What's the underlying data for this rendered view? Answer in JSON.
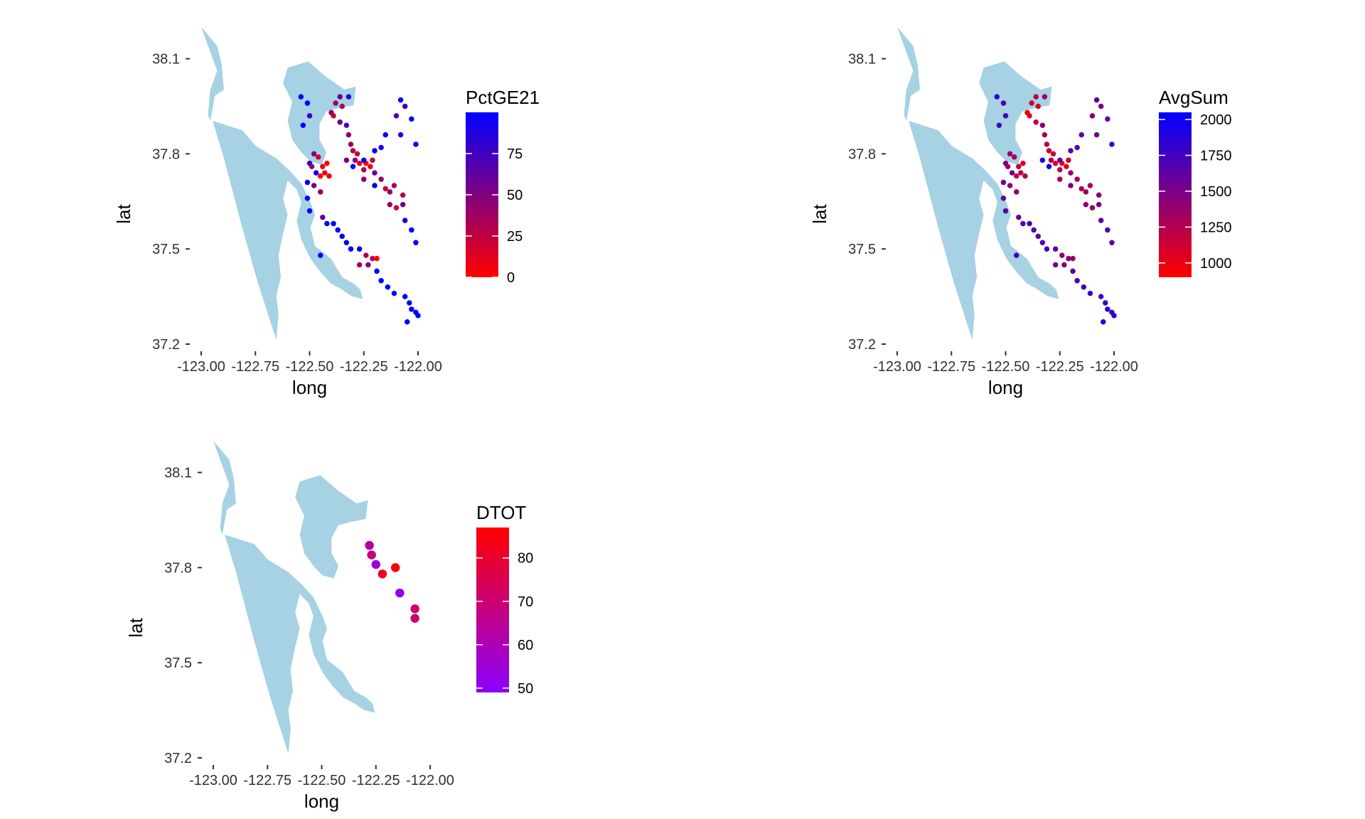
{
  "chart_data": [
    {
      "type": "scatter",
      "id": "pctge21",
      "xlabel": "long",
      "ylabel": "lat",
      "xlim": [
        -123.0,
        -122.0
      ],
      "ylim": [
        37.2,
        38.2
      ],
      "x_ticks": [
        -123.0,
        -122.75,
        -122.5,
        -122.25,
        -122.0
      ],
      "x_tick_labels": [
        "-123.00",
        "-122.75",
        "-122.50",
        "-122.25",
        "-122.00"
      ],
      "y_ticks": [
        37.2,
        37.5,
        37.8,
        38.1
      ],
      "y_tick_labels": [
        "37.2",
        "37.5",
        "37.8",
        "38.1"
      ],
      "legend": {
        "title": "PctGE21",
        "placement": "right",
        "range": [
          0,
          100
        ],
        "ticks": [
          0,
          25,
          50,
          75
        ],
        "tick_labels": [
          "0",
          "25",
          "50",
          "75"
        ],
        "low_color": "#ff0000",
        "high_color": "#0000ff"
      },
      "point_size": 3,
      "points": [
        {
          "x": -122.54,
          "y": 37.98,
          "v": 100
        },
        {
          "x": -122.51,
          "y": 37.96,
          "v": 100
        },
        {
          "x": -122.53,
          "y": 37.89,
          "v": 100
        },
        {
          "x": -122.5,
          "y": 37.92,
          "v": 80
        },
        {
          "x": -122.36,
          "y": 37.98,
          "v": 60
        },
        {
          "x": -122.32,
          "y": 37.98,
          "v": 85
        },
        {
          "x": -122.38,
          "y": 37.96,
          "v": 40
        },
        {
          "x": -122.35,
          "y": 37.95,
          "v": 30
        },
        {
          "x": -122.4,
          "y": 37.93,
          "v": 50
        },
        {
          "x": -122.39,
          "y": 37.92,
          "v": 20
        },
        {
          "x": -122.36,
          "y": 37.9,
          "v": 60
        },
        {
          "x": -122.33,
          "y": 37.89,
          "v": 70
        },
        {
          "x": -122.32,
          "y": 37.86,
          "v": 50
        },
        {
          "x": -122.31,
          "y": 37.83,
          "v": 40
        },
        {
          "x": -122.3,
          "y": 37.81,
          "v": 30
        },
        {
          "x": -122.28,
          "y": 37.8,
          "v": 20
        },
        {
          "x": -122.29,
          "y": 37.78,
          "v": 45
        },
        {
          "x": -122.33,
          "y": 37.78,
          "v": 55
        },
        {
          "x": -122.3,
          "y": 37.76,
          "v": 100
        },
        {
          "x": -122.27,
          "y": 37.77,
          "v": 10
        },
        {
          "x": -122.24,
          "y": 37.77,
          "v": 0
        },
        {
          "x": -122.22,
          "y": 37.76,
          "v": 5
        },
        {
          "x": -122.21,
          "y": 37.78,
          "v": 20
        },
        {
          "x": -122.25,
          "y": 37.75,
          "v": 30
        },
        {
          "x": -122.2,
          "y": 37.74,
          "v": 60
        },
        {
          "x": -122.17,
          "y": 37.72,
          "v": 40
        },
        {
          "x": -122.15,
          "y": 37.69,
          "v": 20
        },
        {
          "x": -122.13,
          "y": 37.68,
          "v": 45
        },
        {
          "x": -122.11,
          "y": 37.7,
          "v": 30
        },
        {
          "x": -122.13,
          "y": 37.64,
          "v": 40
        },
        {
          "x": -122.1,
          "y": 37.63,
          "v": 20
        },
        {
          "x": -122.07,
          "y": 37.67,
          "v": 30
        },
        {
          "x": -122.07,
          "y": 37.64,
          "v": 60
        },
        {
          "x": -122.06,
          "y": 37.59,
          "v": 90
        },
        {
          "x": -122.03,
          "y": 37.56,
          "v": 100
        },
        {
          "x": -122.01,
          "y": 37.52,
          "v": 100
        },
        {
          "x": -122.08,
          "y": 37.97,
          "v": 100
        },
        {
          "x": -122.06,
          "y": 37.95,
          "v": 80
        },
        {
          "x": -122.1,
          "y": 37.92,
          "v": 70
        },
        {
          "x": -122.03,
          "y": 37.91,
          "v": 100
        },
        {
          "x": -122.08,
          "y": 37.86,
          "v": 90
        },
        {
          "x": -122.01,
          "y": 37.83,
          "v": 100
        },
        {
          "x": -122.15,
          "y": 37.86,
          "v": 100
        },
        {
          "x": -122.17,
          "y": 37.82,
          "v": 90
        },
        {
          "x": -122.2,
          "y": 37.81,
          "v": 100
        },
        {
          "x": -122.25,
          "y": 37.78,
          "v": 100
        },
        {
          "x": -122.48,
          "y": 37.8,
          "v": 50
        },
        {
          "x": -122.46,
          "y": 37.79,
          "v": 20
        },
        {
          "x": -122.5,
          "y": 37.77,
          "v": 80
        },
        {
          "x": -122.49,
          "y": 37.76,
          "v": 45
        },
        {
          "x": -122.47,
          "y": 37.74,
          "v": 100
        },
        {
          "x": -122.44,
          "y": 37.76,
          "v": 5
        },
        {
          "x": -122.42,
          "y": 37.77,
          "v": 0
        },
        {
          "x": -122.43,
          "y": 37.74,
          "v": 10
        },
        {
          "x": -122.45,
          "y": 37.73,
          "v": 0
        },
        {
          "x": -122.41,
          "y": 37.73,
          "v": 5
        },
        {
          "x": -122.51,
          "y": 37.71,
          "v": 100
        },
        {
          "x": -122.48,
          "y": 37.7,
          "v": 60
        },
        {
          "x": -122.45,
          "y": 37.68,
          "v": 40
        },
        {
          "x": -122.51,
          "y": 37.66,
          "v": 100
        },
        {
          "x": -122.5,
          "y": 37.62,
          "v": 100
        },
        {
          "x": -122.44,
          "y": 37.6,
          "v": 60
        },
        {
          "x": -122.42,
          "y": 37.58,
          "v": 100
        },
        {
          "x": -122.39,
          "y": 37.58,
          "v": 100
        },
        {
          "x": -122.37,
          "y": 37.56,
          "v": 100
        },
        {
          "x": -122.35,
          "y": 37.54,
          "v": 100
        },
        {
          "x": -122.33,
          "y": 37.52,
          "v": 100
        },
        {
          "x": -122.31,
          "y": 37.5,
          "v": 100
        },
        {
          "x": -122.27,
          "y": 37.5,
          "v": 100
        },
        {
          "x": -122.24,
          "y": 37.48,
          "v": 30
        },
        {
          "x": -122.21,
          "y": 37.47,
          "v": 30
        },
        {
          "x": -122.19,
          "y": 37.47,
          "v": 0
        },
        {
          "x": -122.27,
          "y": 37.45,
          "v": 40
        },
        {
          "x": -122.23,
          "y": 37.45,
          "v": 45
        },
        {
          "x": -122.19,
          "y": 37.43,
          "v": 100
        },
        {
          "x": -122.17,
          "y": 37.4,
          "v": 100
        },
        {
          "x": -122.14,
          "y": 37.38,
          "v": 100
        },
        {
          "x": -122.11,
          "y": 37.36,
          "v": 100
        },
        {
          "x": -122.06,
          "y": 37.35,
          "v": 100
        },
        {
          "x": -122.04,
          "y": 37.33,
          "v": 100
        },
        {
          "x": -122.03,
          "y": 37.31,
          "v": 100
        },
        {
          "x": -122.01,
          "y": 37.3,
          "v": 100
        },
        {
          "x": -122.0,
          "y": 37.29,
          "v": 100
        },
        {
          "x": -122.05,
          "y": 37.27,
          "v": 100
        },
        {
          "x": -122.45,
          "y": 37.48,
          "v": 100
        },
        {
          "x": -122.2,
          "y": 37.7,
          "v": 100
        },
        {
          "x": -122.25,
          "y": 37.72,
          "v": 40
        }
      ]
    },
    {
      "type": "scatter",
      "id": "avgsum",
      "xlabel": "long",
      "ylabel": "lat",
      "xlim": [
        -123.0,
        -122.0
      ],
      "ylim": [
        37.2,
        38.2
      ],
      "x_ticks": [
        -123.0,
        -122.75,
        -122.5,
        -122.25,
        -122.0
      ],
      "x_tick_labels": [
        "-123.00",
        "-122.75",
        "-122.50",
        "-122.25",
        "-122.00"
      ],
      "y_ticks": [
        37.2,
        37.5,
        37.8,
        38.1
      ],
      "y_tick_labels": [
        "37.2",
        "37.5",
        "37.8",
        "38.1"
      ],
      "legend": {
        "title": "AvgSum",
        "placement": "right",
        "range": [
          900,
          2050
        ],
        "ticks": [
          1000,
          1250,
          1500,
          1750,
          2000
        ],
        "tick_labels": [
          "1000",
          "1250",
          "1500",
          "1750",
          "2000"
        ],
        "low_color": "#ff0000",
        "high_color": "#0000ff"
      },
      "point_size": 3,
      "points": [
        {
          "x": -122.54,
          "y": 37.98,
          "v": 1800
        },
        {
          "x": -122.51,
          "y": 37.96,
          "v": 1700
        },
        {
          "x": -122.53,
          "y": 37.89,
          "v": 1750
        },
        {
          "x": -122.5,
          "y": 37.92,
          "v": 1750
        },
        {
          "x": -122.36,
          "y": 37.98,
          "v": 1200
        },
        {
          "x": -122.32,
          "y": 37.98,
          "v": 1300
        },
        {
          "x": -122.38,
          "y": 37.96,
          "v": 1150
        },
        {
          "x": -122.35,
          "y": 37.95,
          "v": 1100
        },
        {
          "x": -122.4,
          "y": 37.93,
          "v": 950
        },
        {
          "x": -122.39,
          "y": 37.92,
          "v": 1000
        },
        {
          "x": -122.36,
          "y": 37.9,
          "v": 1200
        },
        {
          "x": -122.33,
          "y": 37.89,
          "v": 1500
        },
        {
          "x": -122.32,
          "y": 37.86,
          "v": 1300
        },
        {
          "x": -122.31,
          "y": 37.83,
          "v": 1200
        },
        {
          "x": -122.3,
          "y": 37.81,
          "v": 1150
        },
        {
          "x": -122.28,
          "y": 37.8,
          "v": 1100
        },
        {
          "x": -122.29,
          "y": 37.78,
          "v": 1300
        },
        {
          "x": -122.33,
          "y": 37.78,
          "v": 1900
        },
        {
          "x": -122.3,
          "y": 37.76,
          "v": 2000
        },
        {
          "x": -122.27,
          "y": 37.77,
          "v": 1050
        },
        {
          "x": -122.24,
          "y": 37.77,
          "v": 1000
        },
        {
          "x": -122.22,
          "y": 37.76,
          "v": 1050
        },
        {
          "x": -122.21,
          "y": 37.78,
          "v": 1150
        },
        {
          "x": -122.25,
          "y": 37.75,
          "v": 1200
        },
        {
          "x": -122.2,
          "y": 37.74,
          "v": 1400
        },
        {
          "x": -122.17,
          "y": 37.72,
          "v": 1300
        },
        {
          "x": -122.15,
          "y": 37.69,
          "v": 1250
        },
        {
          "x": -122.13,
          "y": 37.68,
          "v": 1350
        },
        {
          "x": -122.11,
          "y": 37.7,
          "v": 1300
        },
        {
          "x": -122.13,
          "y": 37.64,
          "v": 1400
        },
        {
          "x": -122.1,
          "y": 37.63,
          "v": 1350
        },
        {
          "x": -122.07,
          "y": 37.67,
          "v": 1450
        },
        {
          "x": -122.07,
          "y": 37.64,
          "v": 1500
        },
        {
          "x": -122.06,
          "y": 37.59,
          "v": 1650
        },
        {
          "x": -122.03,
          "y": 37.56,
          "v": 1700
        },
        {
          "x": -122.01,
          "y": 37.52,
          "v": 1600
        },
        {
          "x": -122.08,
          "y": 37.97,
          "v": 1650
        },
        {
          "x": -122.06,
          "y": 37.95,
          "v": 1500
        },
        {
          "x": -122.1,
          "y": 37.92,
          "v": 1450
        },
        {
          "x": -122.03,
          "y": 37.91,
          "v": 1600
        },
        {
          "x": -122.08,
          "y": 37.86,
          "v": 1550
        },
        {
          "x": -122.01,
          "y": 37.83,
          "v": 1750
        },
        {
          "x": -122.15,
          "y": 37.86,
          "v": 1600
        },
        {
          "x": -122.17,
          "y": 37.82,
          "v": 1650
        },
        {
          "x": -122.2,
          "y": 37.81,
          "v": 1700
        },
        {
          "x": -122.25,
          "y": 37.78,
          "v": 1600
        },
        {
          "x": -122.48,
          "y": 37.8,
          "v": 1400
        },
        {
          "x": -122.46,
          "y": 37.79,
          "v": 1300
        },
        {
          "x": -122.5,
          "y": 37.77,
          "v": 1500
        },
        {
          "x": -122.49,
          "y": 37.76,
          "v": 1350
        },
        {
          "x": -122.47,
          "y": 37.74,
          "v": 1550
        },
        {
          "x": -122.44,
          "y": 37.76,
          "v": 1150
        },
        {
          "x": -122.42,
          "y": 37.77,
          "v": 1100
        },
        {
          "x": -122.43,
          "y": 37.74,
          "v": 1200
        },
        {
          "x": -122.45,
          "y": 37.73,
          "v": 1150
        },
        {
          "x": -122.41,
          "y": 37.73,
          "v": 1250
        },
        {
          "x": -122.51,
          "y": 37.71,
          "v": 1550
        },
        {
          "x": -122.48,
          "y": 37.7,
          "v": 1450
        },
        {
          "x": -122.45,
          "y": 37.68,
          "v": 1400
        },
        {
          "x": -122.51,
          "y": 37.66,
          "v": 1600
        },
        {
          "x": -122.5,
          "y": 37.62,
          "v": 1650
        },
        {
          "x": -122.44,
          "y": 37.6,
          "v": 1550
        },
        {
          "x": -122.42,
          "y": 37.58,
          "v": 1700
        },
        {
          "x": -122.39,
          "y": 37.58,
          "v": 1750
        },
        {
          "x": -122.37,
          "y": 37.56,
          "v": 1700
        },
        {
          "x": -122.35,
          "y": 37.54,
          "v": 1650
        },
        {
          "x": -122.33,
          "y": 37.52,
          "v": 1700
        },
        {
          "x": -122.31,
          "y": 37.5,
          "v": 1750
        },
        {
          "x": -122.27,
          "y": 37.5,
          "v": 1650
        },
        {
          "x": -122.24,
          "y": 37.48,
          "v": 1400
        },
        {
          "x": -122.21,
          "y": 37.47,
          "v": 1450
        },
        {
          "x": -122.19,
          "y": 37.47,
          "v": 1350
        },
        {
          "x": -122.27,
          "y": 37.45,
          "v": 1500
        },
        {
          "x": -122.23,
          "y": 37.45,
          "v": 1450
        },
        {
          "x": -122.19,
          "y": 37.43,
          "v": 1650
        },
        {
          "x": -122.17,
          "y": 37.4,
          "v": 1700
        },
        {
          "x": -122.14,
          "y": 37.38,
          "v": 1750
        },
        {
          "x": -122.11,
          "y": 37.36,
          "v": 1800
        },
        {
          "x": -122.06,
          "y": 37.35,
          "v": 1750
        },
        {
          "x": -122.04,
          "y": 37.33,
          "v": 1800
        },
        {
          "x": -122.03,
          "y": 37.31,
          "v": 1850
        },
        {
          "x": -122.01,
          "y": 37.3,
          "v": 1800
        },
        {
          "x": -122.0,
          "y": 37.29,
          "v": 1850
        },
        {
          "x": -122.05,
          "y": 37.27,
          "v": 1900
        },
        {
          "x": -122.45,
          "y": 37.48,
          "v": 1750
        },
        {
          "x": -122.2,
          "y": 37.7,
          "v": 1500
        },
        {
          "x": -122.25,
          "y": 37.72,
          "v": 1300
        }
      ]
    },
    {
      "type": "scatter",
      "id": "dtot",
      "xlabel": "long",
      "ylabel": "lat",
      "xlim": [
        -123.0,
        -122.0
      ],
      "ylim": [
        37.2,
        38.2
      ],
      "x_ticks": [
        -123.0,
        -122.75,
        -122.5,
        -122.25,
        -122.0
      ],
      "x_tick_labels": [
        "-123.00",
        "-122.75",
        "-122.50",
        "-122.25",
        "-122.00"
      ],
      "y_ticks": [
        37.2,
        37.5,
        37.8,
        38.1
      ],
      "y_tick_labels": [
        "37.2",
        "37.5",
        "37.8",
        "38.1"
      ],
      "legend": {
        "title": "DTOT",
        "placement": "right",
        "range": [
          49,
          87
        ],
        "ticks": [
          50,
          60,
          70,
          80
        ],
        "tick_labels": [
          "50",
          "60",
          "70",
          "80"
        ],
        "low_color": "#8b00ff",
        "high_color": "#ff0000"
      },
      "point_size": 5,
      "points": [
        {
          "x": -122.28,
          "y": 37.87,
          "v": 62
        },
        {
          "x": -122.27,
          "y": 37.84,
          "v": 68
        },
        {
          "x": -122.25,
          "y": 37.81,
          "v": 55
        },
        {
          "x": -122.22,
          "y": 37.78,
          "v": 82
        },
        {
          "x": -122.16,
          "y": 37.8,
          "v": 85
        },
        {
          "x": -122.14,
          "y": 37.72,
          "v": 50
        },
        {
          "x": -122.07,
          "y": 37.67,
          "v": 72
        },
        {
          "x": -122.07,
          "y": 37.64,
          "v": 70
        }
      ]
    }
  ]
}
